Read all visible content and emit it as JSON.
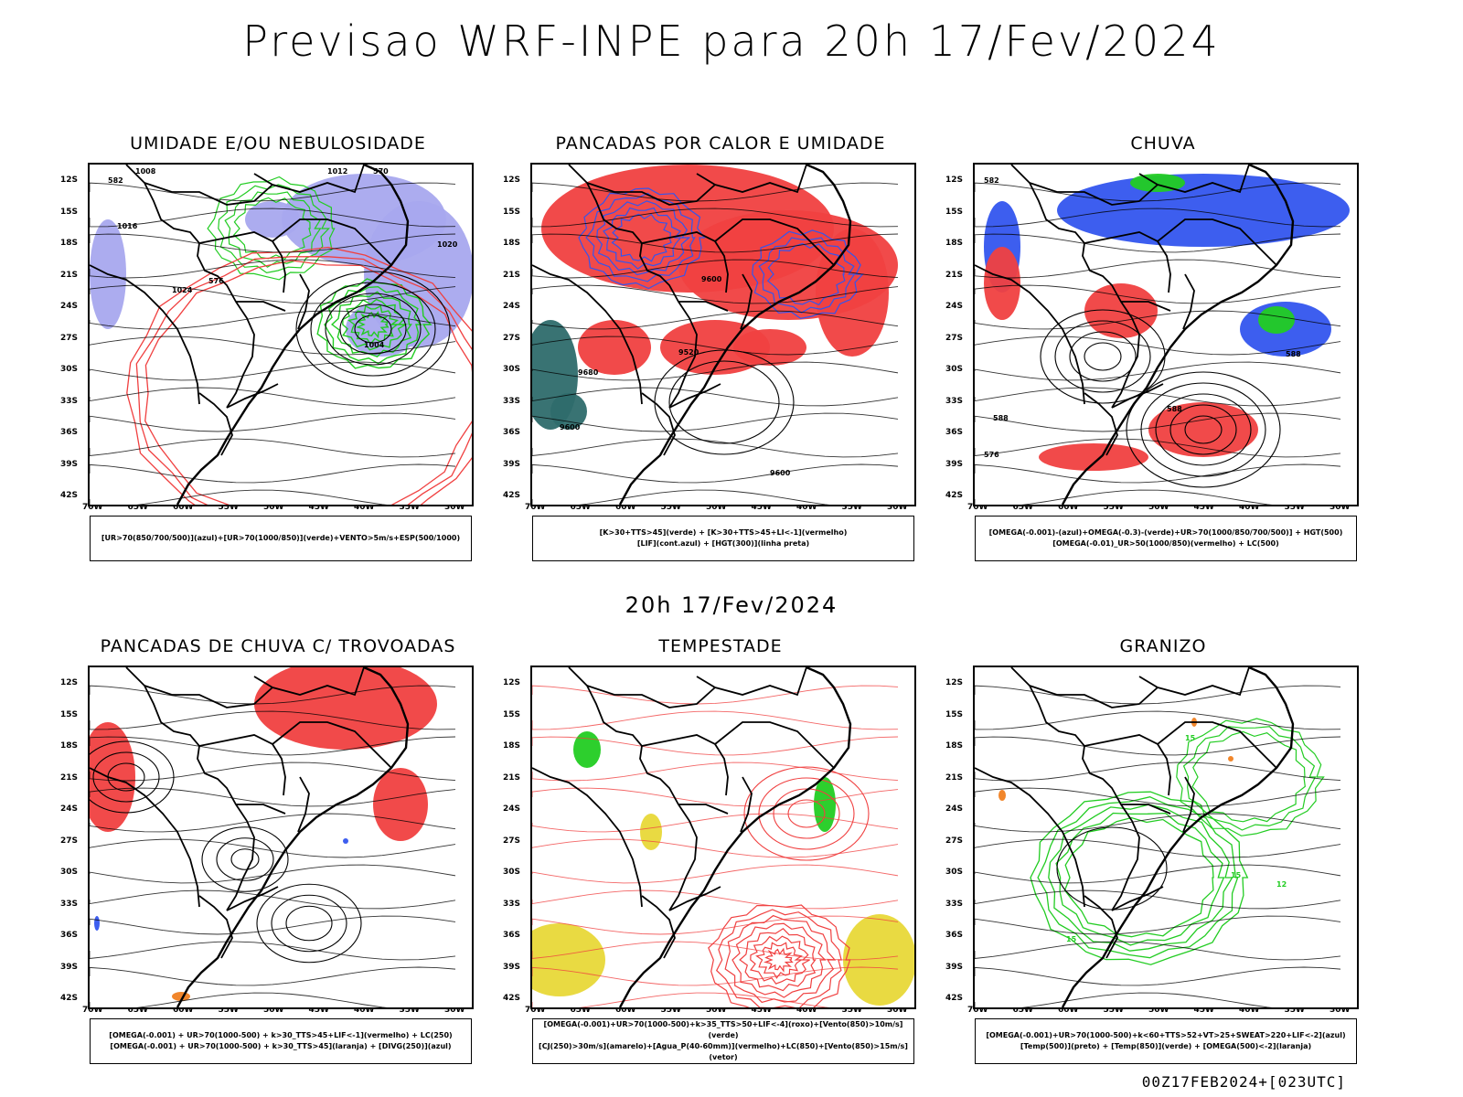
{
  "main_title": "Previsao WRF-INPE  para 20h 17/Fev/2024",
  "mid_title": "20h 17/Fev/2024",
  "footer": "00Z17FEB2024+[023UTC]",
  "lat_labels": [
    "12S",
    "15S",
    "18S",
    "21S",
    "24S",
    "27S",
    "30S",
    "33S",
    "36S",
    "39S",
    "42S"
  ],
  "lon_labels": [
    "70W",
    "65W",
    "60W",
    "55W",
    "50W",
    "45W",
    "40W",
    "35W",
    "30W"
  ],
  "panels": [
    {
      "title": "UMIDADE E/OU NEBULOSIDADE",
      "legend": [
        "[UR>70(850/700/500)](azul)+[UR>70(1000/850)](verde)+VENTO>5m/s+ESP(500/1000)"
      ],
      "contour_labels": [
        "1008",
        "1012",
        "1016",
        "1020",
        "1024",
        "1004",
        "576",
        "570",
        "582"
      ]
    },
    {
      "title": "PANCADAS POR CALOR E UMIDADE",
      "legend": [
        "[K>30+TTS>45](verde) + [K>30+TTS>45+LI<-1](vermelho)",
        "[LIF](cont.azul) + [HGT(300)](linha preta)"
      ],
      "contour_labels": [
        "9600",
        "9520",
        "9680",
        "9600",
        "9600"
      ]
    },
    {
      "title": "CHUVA",
      "legend": [
        "[OMEGA(-0.001)-(azul)+OMEGA(-0.3)-(verde)+UR>70(1000/850/700/500)] + HGT(500)",
        "[OMEGA(-0.01)_UR>50(1000/850)(vermelho) + LC(500)"
      ],
      "contour_labels": [
        "582",
        "588",
        "576",
        "588",
        "588"
      ]
    },
    {
      "title": "PANCADAS DE CHUVA C/ TROVOADAS",
      "legend": [
        "[OMEGA(-0.001) + UR>70(1000-500) + k>30_TTS>45+LIF<-1](vermelho) + LC(250)",
        "[OMEGA(-0.001) + UR>70(1000-500) + k>30_TTS>45](laranja) + [DIVG(250)](azul)"
      ],
      "contour_labels": []
    },
    {
      "title": "TEMPESTADE",
      "legend": [
        "[OMEGA(-0.001)+UR>70(1000-500)+k>35_TTS>50+LIF<-4](roxo)+[Vento(850)>10m/s](verde)",
        "[CJ(250)>30m/s](amarelo)+[Agua_P(40-60mm)](vermelho)+LC(850)+[Vento(850)>15m/s](vetor)"
      ],
      "contour_labels": []
    },
    {
      "title": "GRANIZO",
      "legend": [
        "[OMEGA(-0.001)+UR>70(1000-500)+k<60+TTS>52+VT>25+SWEAT>220+LIF<-2](azul)",
        "[Temp(500)](preto) + [Temp(850)](verde) + [OMEGA(500)<-2](laranja)"
      ],
      "contour_labels": [
        "15",
        "15",
        "15",
        "12"
      ]
    }
  ],
  "colors": {
    "blue_fill": "#a8a8ee",
    "green_line": "#22cc22",
    "red": "#f04040",
    "blue_line": "#3355ee",
    "teal": "#2e6b6b",
    "yellow": "#e8d838",
    "orange": "#f08020",
    "purple": "#cc33cc"
  }
}
